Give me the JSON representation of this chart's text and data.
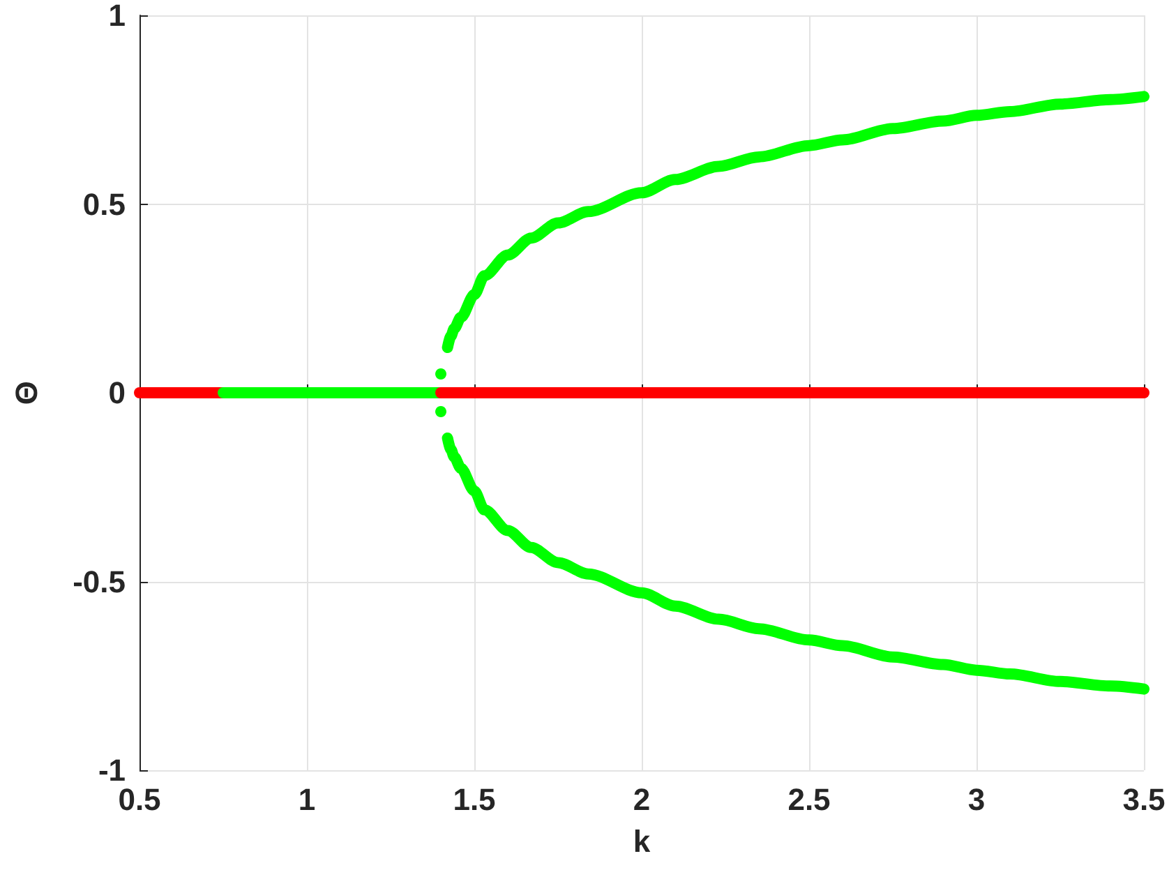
{
  "chart_data": {
    "type": "line",
    "xlabel": "k",
    "ylabel": "Θ",
    "xlim": [
      0.5,
      3.5
    ],
    "xticks": [
      0.5,
      1,
      1.5,
      2,
      2.5,
      3,
      3.5
    ],
    "ylim": [
      -1,
      1
    ],
    "yticks": [
      -1,
      -0.5,
      0,
      0.5,
      1
    ],
    "grid": true,
    "marker": "none",
    "line_style": "solid",
    "series": [
      {
        "color": "#ff0000",
        "x": [
          0.5,
          0.75
        ],
        "values": [
          0,
          0
        ]
      },
      {
        "color": "#00ff00",
        "x": [
          0.75,
          1.4
        ],
        "values": [
          0,
          0
        ]
      },
      {
        "color": "#ff0000",
        "x": [
          1.4,
          3.5
        ],
        "values": [
          0,
          0
        ]
      },
      {
        "color": "#00ff00",
        "x": [
          1.42,
          1.43,
          1.44,
          1.46,
          1.5,
          1.53,
          1.6,
          1.67,
          1.75,
          1.84,
          2.0,
          2.1,
          2.23,
          2.35,
          2.5,
          2.6,
          2.75,
          2.9,
          3.0,
          3.1,
          3.25,
          3.4,
          3.5
        ],
        "values": [
          0.12,
          0.15,
          0.17,
          0.2,
          0.26,
          0.31,
          0.365,
          0.41,
          0.45,
          0.48,
          0.53,
          0.565,
          0.6,
          0.625,
          0.655,
          0.67,
          0.7,
          0.72,
          0.735,
          0.745,
          0.765,
          0.777,
          0.785
        ]
      },
      {
        "color": "#00ff00",
        "x": [
          1.42,
          1.43,
          1.44,
          1.46,
          1.5,
          1.53,
          1.6,
          1.67,
          1.75,
          1.84,
          2.0,
          2.1,
          2.23,
          2.35,
          2.5,
          2.6,
          2.75,
          2.9,
          3.0,
          3.1,
          3.25,
          3.4,
          3.5
        ],
        "values": [
          -0.12,
          -0.15,
          -0.17,
          -0.2,
          -0.26,
          -0.31,
          -0.365,
          -0.41,
          -0.45,
          -0.48,
          -0.53,
          -0.565,
          -0.6,
          -0.625,
          -0.655,
          -0.67,
          -0.7,
          -0.72,
          -0.735,
          -0.745,
          -0.765,
          -0.777,
          -0.785
        ]
      },
      {
        "type": "scatter",
        "marker": "circle",
        "color": "#00ff00",
        "x": [
          1.4,
          1.4
        ],
        "values": [
          0.05,
          -0.05
        ]
      }
    ]
  }
}
